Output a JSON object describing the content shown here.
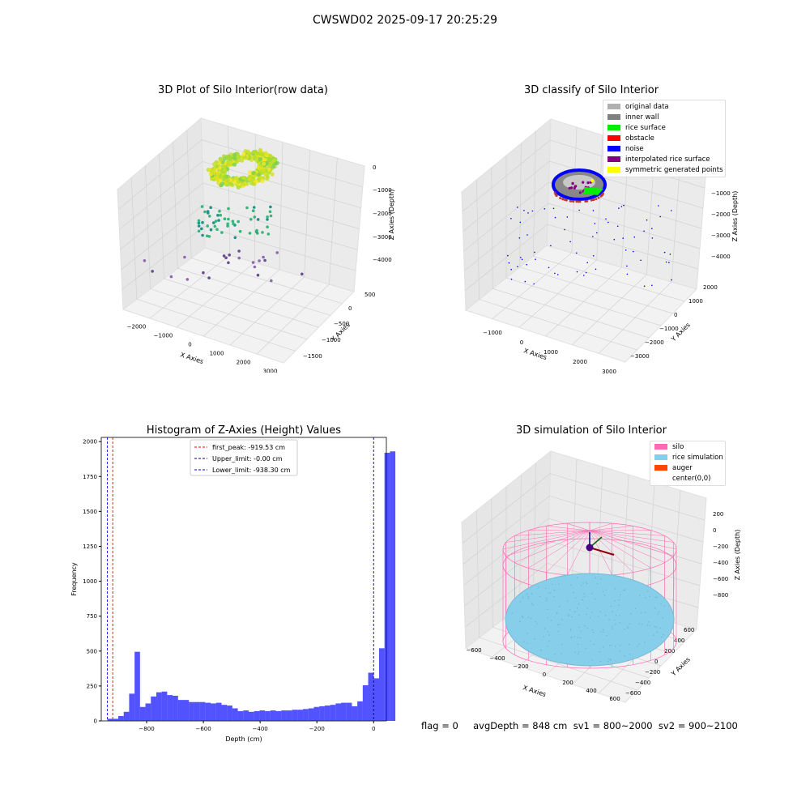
{
  "figure": {
    "title": "CWSWD02 2025-09-17 20:25:29",
    "footer": "flag = 0     avgDepth = 848 cm  sv1 = 800~2000  sv2 = 900~2100"
  },
  "panels": {
    "raw": {
      "title": "3D Plot of Silo Interior(row data)",
      "xlabel": "X Axies",
      "ylabel": "Y Axies",
      "zlabel": "Z Axies (Depth)",
      "xticks": [
        "−2000",
        "−1000",
        "0",
        "1000",
        "2000",
        "3000"
      ],
      "yticks": [
        "500",
        "0",
        "−500",
        "−1000",
        "−1500"
      ],
      "zticks": [
        "0",
        "−1000",
        "−2000",
        "−3000",
        "−4000"
      ]
    },
    "classify": {
      "title": "3D classify of Silo Interior",
      "xlabel": "X Axies",
      "ylabel": "Y Axies",
      "zlabel": "Z Axies (Depth)",
      "xticks": [
        "−1000",
        "0",
        "1000",
        "2000",
        "3000"
      ],
      "yticks": [
        "2000",
        "1000",
        "0",
        "−1000",
        "−2000",
        "−3000"
      ],
      "zticks": [
        "0",
        "−1000",
        "−2000",
        "−3000",
        "−4000"
      ],
      "legend": [
        {
          "label": "original data",
          "color": "#b0b0b0"
        },
        {
          "label": "inner wall",
          "color": "#808080"
        },
        {
          "label": "rice surface",
          "color": "#00ee00"
        },
        {
          "label": "obstacle",
          "color": "#ff0000"
        },
        {
          "label": "noise",
          "color": "#0000ff"
        },
        {
          "label": "interpolated rice surface",
          "color": "#800080"
        },
        {
          "label": "symmetric generated points",
          "color": "#ffff00"
        }
      ]
    },
    "histogram": {
      "title": "Histogram of Z-Axies (Height) Values",
      "xlabel": "Depth (cm)",
      "ylabel": "Frequency",
      "legend": [
        {
          "label": "first_peak: -919.53 cm",
          "color": "#ff0000"
        },
        {
          "label": "Upper_limit: -0.00 cm",
          "color": "#000080"
        },
        {
          "label": "Lower_limit: -938.30 cm",
          "color": "#0000ff"
        }
      ]
    },
    "simulation": {
      "title": "3D simulation of Silo Interior",
      "xlabel": "X Axies",
      "ylabel": "Y Axies",
      "zlabel": "Z Axies (Depth)",
      "xticks": [
        "−600",
        "−400",
        "−200",
        "0",
        "200",
        "400",
        "600"
      ],
      "yticks": [
        "600",
        "400",
        "200",
        "0",
        "−200",
        "−400",
        "−600"
      ],
      "zticks": [
        "200",
        "0",
        "−200",
        "−400",
        "−600",
        "−800"
      ],
      "legend": [
        {
          "label": "silo",
          "color": "#ff69b4"
        },
        {
          "label": "rice simulation",
          "color": "#87ceeb"
        },
        {
          "label": "auger",
          "color": "#ff4500"
        },
        {
          "label": "center(0,0)",
          "color": "#ffffff"
        }
      ]
    }
  },
  "chart_data": [
    {
      "type": "scatter",
      "title": "3D Plot of Silo Interior(row data)",
      "xlabel": "X Axies",
      "ylabel": "Y Axies",
      "zlabel": "Z Axies (Depth)",
      "xlim": [
        -2300,
        3300
      ],
      "ylim": [
        -1700,
        700
      ],
      "zlim": [
        -4500,
        200
      ],
      "colormap": "viridis (by depth)",
      "note": "dense yellow-green ring of points near Z≈0 with scattered deeper points"
    },
    {
      "type": "scatter",
      "title": "3D classify of Silo Interior",
      "xlabel": "X Axies",
      "ylabel": "Y Axies",
      "zlabel": "Z Axies (Depth)",
      "xlim": [
        -1600,
        3200
      ],
      "ylim": [
        -3200,
        2100
      ],
      "zlim": [
        -4500,
        200
      ],
      "series": [
        {
          "name": "original data"
        },
        {
          "name": "inner wall"
        },
        {
          "name": "rice surface"
        },
        {
          "name": "obstacle"
        },
        {
          "name": "noise"
        },
        {
          "name": "interpolated rice surface"
        },
        {
          "name": "symmetric generated points"
        }
      ]
    },
    {
      "type": "bar",
      "title": "Histogram of Z-Axies (Height) Values",
      "xlabel": "Depth (cm)",
      "ylabel": "Frequency",
      "xlim": [
        -960,
        45
      ],
      "ylim": [
        0,
        2030
      ],
      "xticks": [
        -800,
        -600,
        -400,
        -200,
        0
      ],
      "yticks": [
        0,
        250,
        500,
        750,
        1000,
        1250,
        1500,
        1750,
        2000
      ],
      "bin_start": -938.3,
      "bin_width": 19.15,
      "values": [
        15,
        15,
        35,
        65,
        195,
        495,
        100,
        125,
        175,
        205,
        210,
        185,
        180,
        150,
        150,
        135,
        135,
        135,
        130,
        125,
        130,
        115,
        110,
        90,
        70,
        75,
        65,
        70,
        75,
        70,
        75,
        70,
        75,
        75,
        80,
        80,
        85,
        90,
        100,
        105,
        110,
        115,
        125,
        130,
        130,
        105,
        140,
        255,
        345,
        305,
        520,
        1920,
        1930
      ],
      "vlines": [
        {
          "name": "first_peak: -919.53 cm",
          "x": -919.53
        },
        {
          "name": "Upper_limit: -0.00 cm",
          "x": -0.0
        },
        {
          "name": "Lower_limit: -938.30 cm",
          "x": -938.3
        }
      ]
    },
    {
      "type": "surface",
      "title": "3D simulation of Silo Interior",
      "xlabel": "X Axies",
      "ylabel": "Y Axies",
      "zlabel": "Z Axies (Depth)",
      "xlim": [
        -700,
        700
      ],
      "ylim": [
        -700,
        700
      ],
      "zlim": [
        -900,
        300
      ],
      "series": [
        {
          "name": "silo"
        },
        {
          "name": "rice simulation"
        },
        {
          "name": "auger"
        },
        {
          "name": "center(0,0)"
        }
      ]
    }
  ]
}
